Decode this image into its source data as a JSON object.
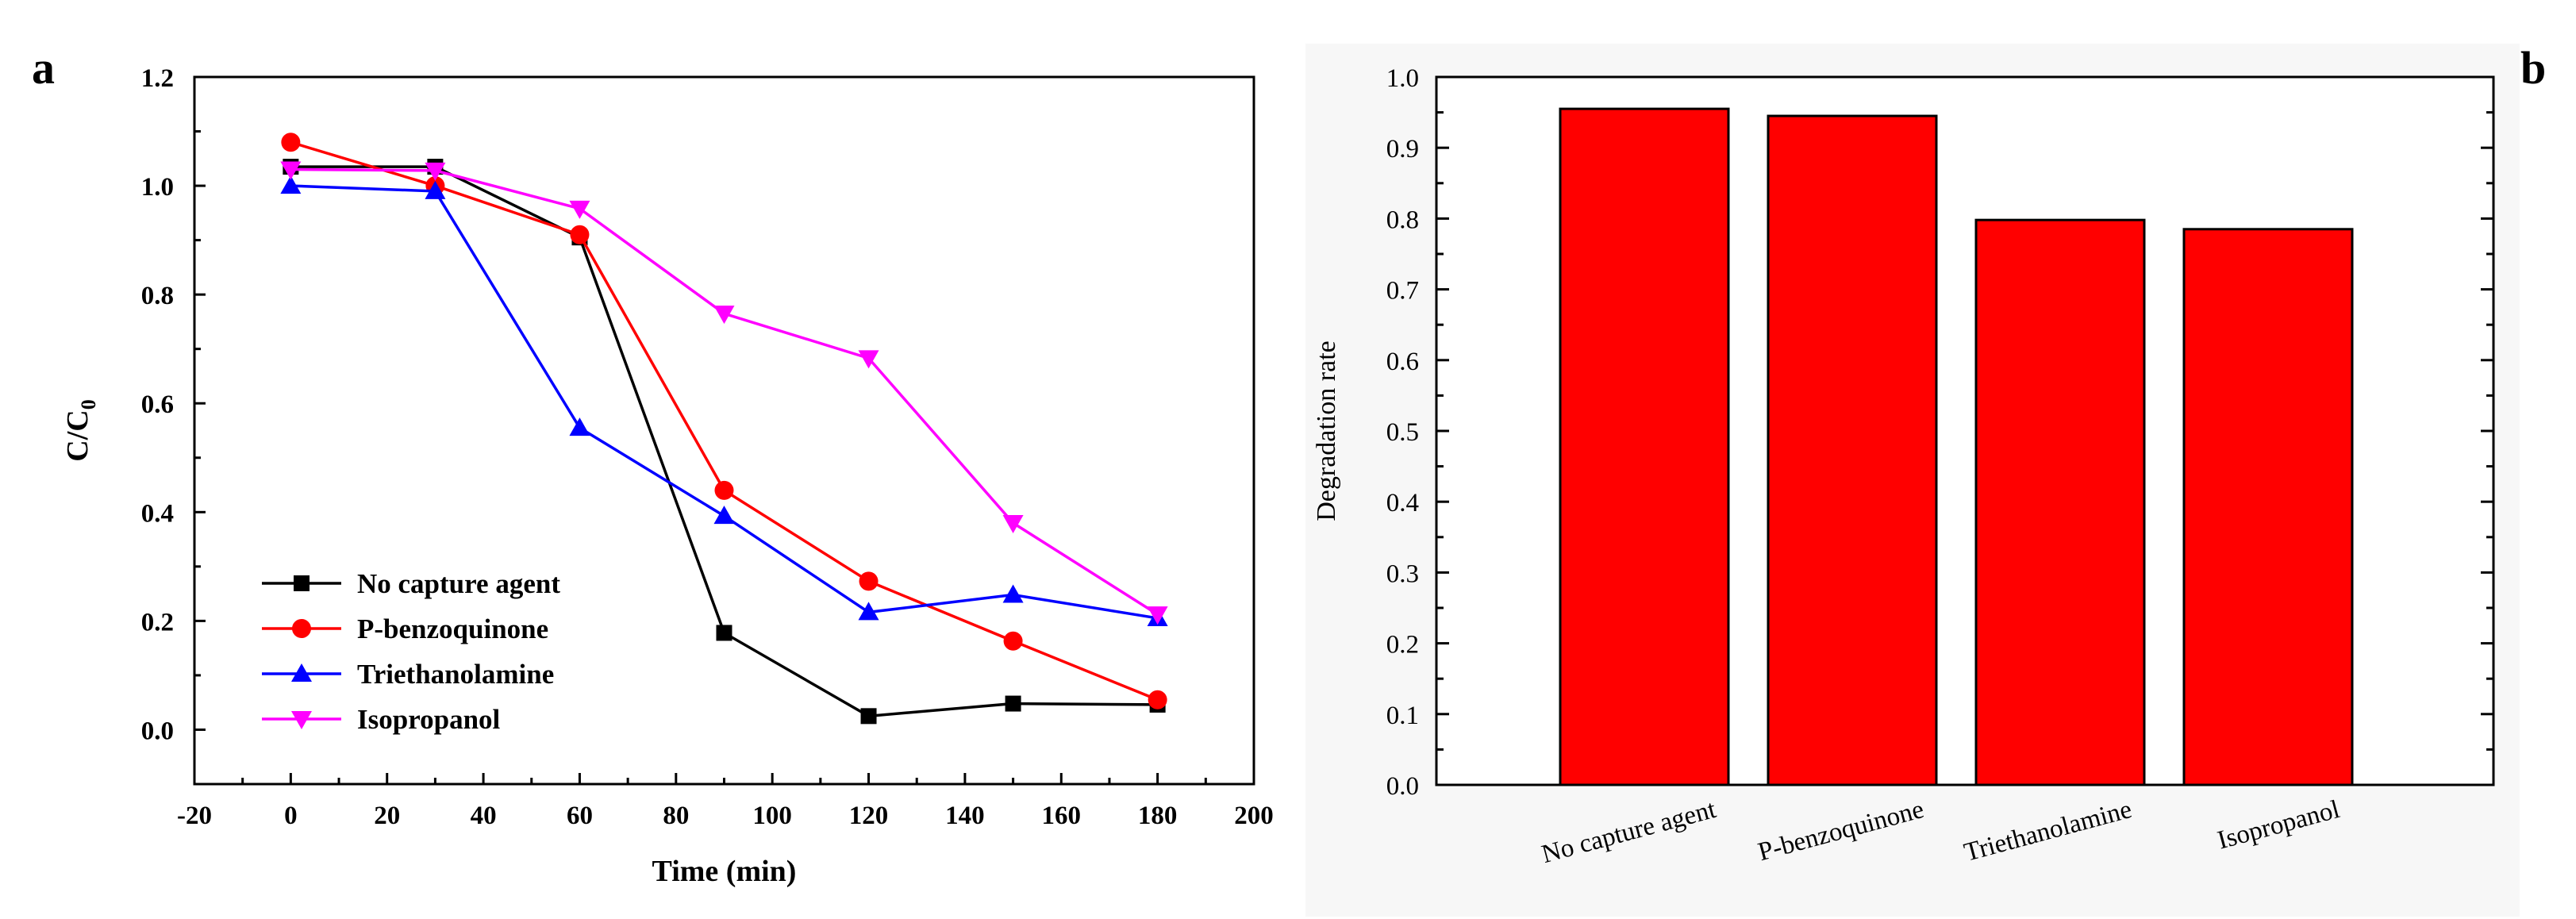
{
  "figure": {
    "panel_a_label": "a",
    "panel_b_label": "b"
  },
  "chart_data": [
    {
      "type": "line",
      "panel": "a",
      "title": "",
      "xlabel": "Time (min)",
      "ylabel": "C/C",
      "ylabel_subscript": "0",
      "xlim": [
        -20,
        200
      ],
      "ylim": [
        -0.1,
        1.2
      ],
      "xticks": [
        -20,
        0,
        20,
        40,
        60,
        80,
        100,
        120,
        140,
        160,
        180,
        200
      ],
      "xtick_labels": [
        "-20",
        "0",
        "20",
        "40",
        "60",
        "80",
        "100",
        "120",
        "140",
        "160",
        "180",
        "200"
      ],
      "yticks": [
        0.0,
        0.2,
        0.4,
        0.6,
        0.8,
        1.0,
        1.2
      ],
      "ytick_labels": [
        "0.0",
        "0.2",
        "0.4",
        "0.6",
        "0.8",
        "1.0",
        "1.2"
      ],
      "legend_position": "bottom-left",
      "x": [
        0,
        30,
        60,
        90,
        120,
        150,
        180
      ],
      "series": [
        {
          "name": "No capture agent",
          "color": "#000000",
          "marker": "square",
          "values": [
            1.035,
            1.035,
            0.905,
            0.178,
            0.025,
            0.048,
            0.046
          ]
        },
        {
          "name": "P-benzoquinone",
          "color": "#ff0000",
          "marker": "circle",
          "values": [
            1.08,
            1.0,
            0.91,
            0.44,
            0.273,
            0.163,
            0.055
          ]
        },
        {
          "name": "Triethanolamine",
          "color": "#0000ff",
          "marker": "triangle-up",
          "values": [
            1.0,
            0.99,
            0.555,
            0.393,
            0.216,
            0.248,
            0.205
          ]
        },
        {
          "name": "Isopropanol",
          "color": "#ff00ff",
          "marker": "triangle-down",
          "values": [
            1.03,
            1.028,
            0.958,
            0.765,
            0.683,
            0.38,
            0.212
          ]
        }
      ]
    },
    {
      "type": "bar",
      "panel": "b",
      "title": "",
      "xlabel": "",
      "ylabel": "Degradation rate",
      "ylim": [
        0.0,
        1.0
      ],
      "yticks": [
        0.0,
        0.1,
        0.2,
        0.3,
        0.4,
        0.5,
        0.6,
        0.7,
        0.8,
        0.9,
        1.0
      ],
      "ytick_labels": [
        "0.0",
        "0.1",
        "0.2",
        "0.3",
        "0.4",
        "0.5",
        "0.6",
        "0.7",
        "0.8",
        "0.9",
        "1.0"
      ],
      "categories": [
        "No capture agent",
        "P-benzoquinone",
        "Triethanolamine",
        "Isopropanol"
      ],
      "values": [
        0.955,
        0.945,
        0.798,
        0.785
      ],
      "bar_color": "#ff0000"
    }
  ]
}
